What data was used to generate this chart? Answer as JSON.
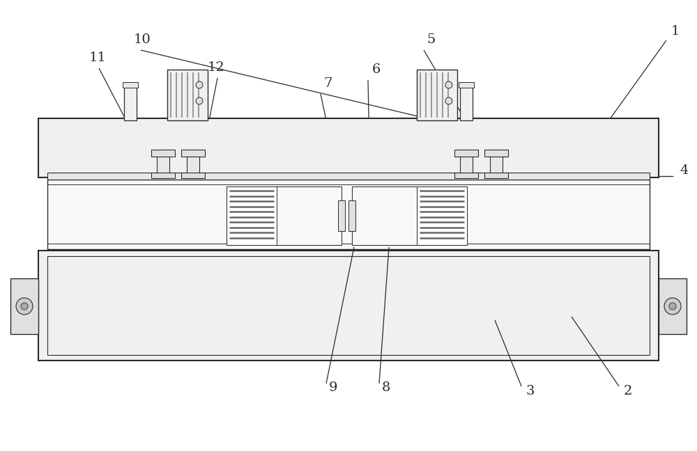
{
  "bg_color": "#ffffff",
  "lc": "#2a2a2a",
  "fc_white": "#ffffff",
  "fc_light": "#f5f5f5",
  "fc_mid": "#e8e8e8",
  "fc_gray": "#d0d0d0",
  "fc_dark": "#999999",
  "roller_stripe": "#555555"
}
